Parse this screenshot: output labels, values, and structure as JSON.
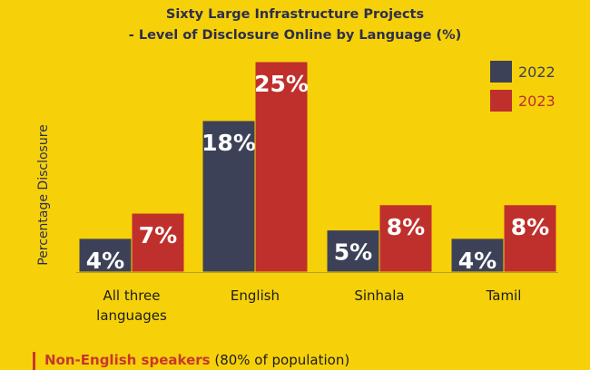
{
  "chart_data": {
    "type": "bar",
    "title": "Sixty Large Infrastructure Projects",
    "subtitle": "- Level of Disclosure Online by Language (%)",
    "ylabel": "Percentage Disclosure",
    "categories": [
      [
        "All three",
        "languages"
      ],
      [
        "English"
      ],
      [
        "Sinhala"
      ],
      [
        "Tamil"
      ]
    ],
    "series": [
      {
        "name": "2022",
        "values": [
          4,
          18,
          5,
          4
        ],
        "labels": [
          "4%",
          "18%",
          "5%",
          "4%"
        ],
        "color": "#3d4158"
      },
      {
        "name": "2023",
        "values": [
          7,
          25,
          8,
          8
        ],
        "labels": [
          "7%",
          "25%",
          "8%",
          "8%"
        ],
        "color": "#bf302c"
      }
    ],
    "ylim": [
      0,
      25
    ],
    "legend": "top-right",
    "grid": false
  },
  "colors": {
    "background": "#f6d10a",
    "title": "#2d2e4c",
    "note_accent": "#c6382d"
  },
  "note": {
    "highlight": "Non-English speakers",
    "rest": " (80% of population)"
  }
}
